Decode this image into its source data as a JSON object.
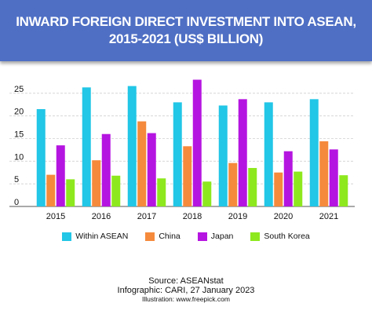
{
  "header": {
    "title_line1": "INWARD FOREIGN DIRECT INVESTMENT INTO ASEAN,",
    "title_line2": "2015-2021 (US$ BILLION)"
  },
  "colors": {
    "header_bg": "#4f6fc4",
    "Within ASEAN": "#22c6e6",
    "China": "#f58a3c",
    "Japan": "#b515e0",
    "South Korea": "#8ee81e"
  },
  "chart_data": {
    "type": "bar",
    "title": "INWARD FOREIGN DIRECT INVESTMENT INTO ASEAN, 2015-2021 (US$ BILLION)",
    "categories": [
      "2015",
      "2016",
      "2017",
      "2018",
      "2019",
      "2020",
      "2021"
    ],
    "series": [
      {
        "name": "Within ASEAN",
        "values": [
          21.5,
          26.3,
          26.6,
          23.0,
          22.3,
          23.0,
          23.7
        ]
      },
      {
        "name": "China",
        "values": [
          7.0,
          10.2,
          18.8,
          13.3,
          9.6,
          7.5,
          14.4
        ]
      },
      {
        "name": "Japan",
        "values": [
          13.5,
          16.0,
          16.2,
          28.0,
          23.7,
          12.2,
          12.6
        ]
      },
      {
        "name": "South Korea",
        "values": [
          6.0,
          6.8,
          6.2,
          5.5,
          8.5,
          7.7,
          6.9
        ]
      }
    ],
    "yticks": [
      0,
      5,
      10,
      15,
      20,
      25
    ],
    "ylim": [
      0,
      30
    ],
    "grid": true,
    "legend_position": "bottom"
  },
  "footer": {
    "source": "Source: ASEANstat",
    "infographic": "Infographic: CARI, 27 January 2023",
    "illustration": "Illustration: www.freepick.com"
  }
}
